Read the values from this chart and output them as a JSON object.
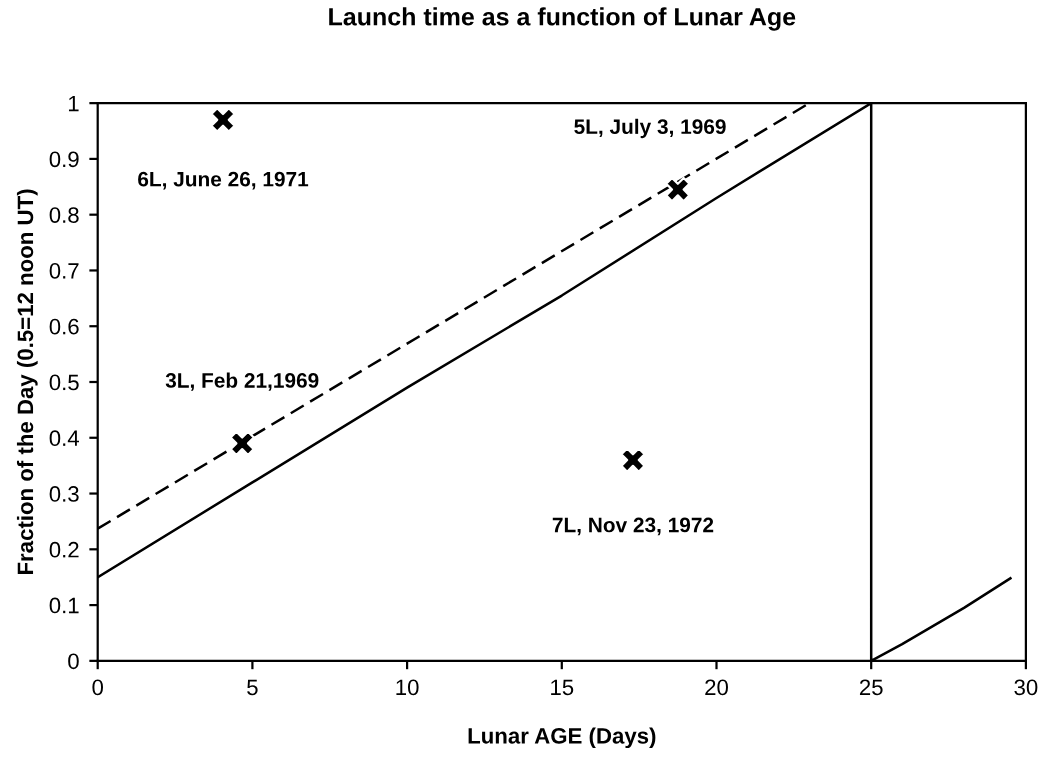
{
  "chart_data": {
    "type": "line",
    "title": "Launch time as a function of Lunar Age",
    "xlabel": "Lunar AGE (Days)",
    "ylabel": "Fraction of the Day (0.5=12 noon UT)",
    "series": [
      {
        "color": "#000000",
        "line_style": "solid",
        "marker": "none",
        "x": [
          0,
          5,
          10,
          15,
          20,
          25,
          25,
          26,
          28,
          29.5
        ],
        "values": [
          0.15,
          0.32,
          0.49,
          0.655,
          0.83,
          1,
          0,
          0.03,
          0.095,
          0.148
        ]
      },
      {
        "color": "#000000",
        "line_style": "dashed",
        "marker": "none",
        "x": [
          0,
          23
        ],
        "values": [
          0.237,
          1
        ]
      },
      {
        "type": "scatter",
        "color": "#000000",
        "marker": "cross",
        "x": [
          4.05,
          4.67,
          18.75,
          17.3
        ],
        "values": [
          0.97,
          0.39,
          0.845,
          0.36
        ]
      }
    ],
    "annotations": [
      {
        "text": "6L, June 26, 1971",
        "x": 4.05,
        "y": 0.97
      },
      {
        "text": "3L, Feb 21,1969",
        "x": 4.67,
        "y": 0.39
      },
      {
        "text": "5L, July 3, 1969",
        "x": 18.75,
        "y": 0.845
      },
      {
        "text": "7L, Nov 23, 1972",
        "x": 17.3,
        "y": 0.36
      }
    ],
    "xlim": [
      0,
      30
    ],
    "xticks": [
      0,
      5,
      10,
      15,
      20,
      25,
      30
    ],
    "ylim": [
      0,
      1
    ],
    "yticks": [
      0,
      0.1,
      0.2,
      0.3,
      0.4,
      0.5,
      0.6,
      0.7,
      0.8,
      0.9,
      1
    ],
    "grid": false,
    "legend": false
  }
}
